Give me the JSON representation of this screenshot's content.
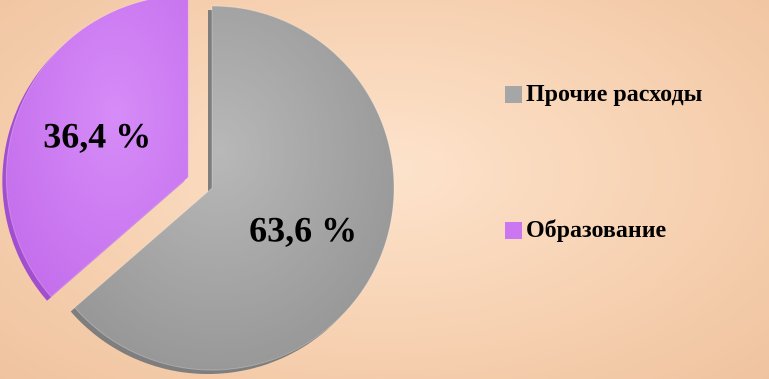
{
  "chart_data": {
    "type": "pie",
    "categories": [
      "Прочие расходы",
      "Образование"
    ],
    "values": [
      63.6,
      36.4
    ],
    "value_labels": [
      "63,6 %",
      "36,4 %"
    ],
    "colors": [
      "#a6a6a6",
      "#cc77f2"
    ],
    "exploded": [
      false,
      true
    ],
    "legend_position": "right",
    "title": ""
  },
  "legend": {
    "items": [
      {
        "label": "Прочие расходы",
        "color": "#a6a6a6"
      },
      {
        "label": "Образование",
        "color": "#cc77f2"
      }
    ]
  }
}
